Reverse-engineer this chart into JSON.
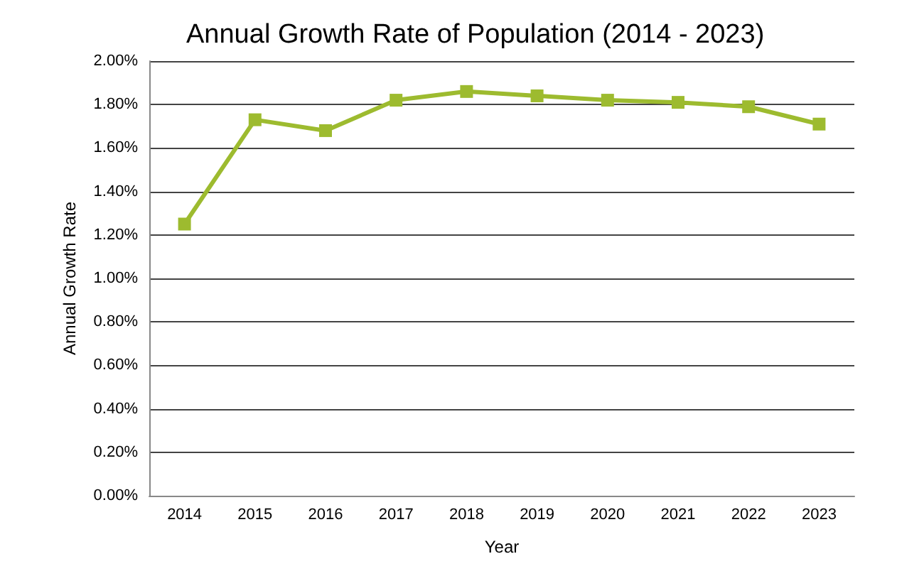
{
  "chart_data": {
    "type": "line",
    "title": "Annual Growth Rate of Population (2014 - 2023)",
    "xlabel": "Year",
    "ylabel": "Annual Growth Rate",
    "categories": [
      "2014",
      "2015",
      "2016",
      "2017",
      "2018",
      "2019",
      "2020",
      "2021",
      "2022",
      "2023"
    ],
    "series": [
      {
        "color": "#9dbb2f",
        "values": [
          1.25,
          1.73,
          1.68,
          1.82,
          1.86,
          1.84,
          1.82,
          1.81,
          1.79,
          1.71
        ]
      }
    ],
    "ylim": [
      0,
      2
    ],
    "yticks": [
      {
        "value": 0,
        "label": "0.00%"
      },
      {
        "value": 0.2,
        "label": "0.20%"
      },
      {
        "value": 0.4,
        "label": "0.40%"
      },
      {
        "value": 0.6,
        "label": "0.60%"
      },
      {
        "value": 0.8,
        "label": "0.80%"
      },
      {
        "value": 1,
        "label": "1.00%"
      },
      {
        "value": 1.2,
        "label": "1.20%"
      },
      {
        "value": 1.4,
        "label": "1.40%"
      },
      {
        "value": 1.6,
        "label": "1.60%"
      },
      {
        "value": 1.8,
        "label": "1.80%"
      },
      {
        "value": 2,
        "label": "2.00%"
      }
    ],
    "grid": "y",
    "marker": "square",
    "line_style": "solid"
  }
}
